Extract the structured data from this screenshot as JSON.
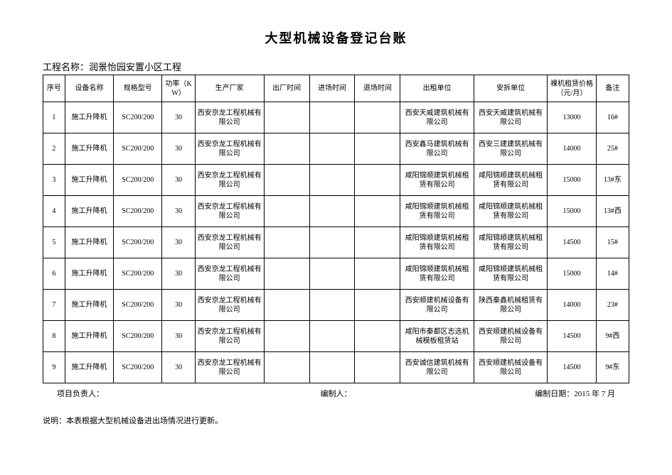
{
  "title": "大型机械设备登记台账",
  "project_label": "工程名称：",
  "project_name": "润景怡园安置小区工程",
  "table": {
    "columns": [
      "序号",
      "设备名称",
      "规格型号",
      "功率（KW）",
      "生产厂家",
      "出厂时间",
      "进场时间",
      "退场时间",
      "出租单位",
      "安拆单位",
      "裸机租赁价格（元/月）",
      "备注"
    ],
    "rows": [
      [
        "1",
        "施工升降机",
        "SC200/200",
        "30",
        "西安京龙工程机械有限公司",
        "",
        "",
        "",
        "西安天威建筑机械有限公司",
        "西安天威建筑机械有限公司",
        "13000",
        "16#"
      ],
      [
        "2",
        "施工升降机",
        "SC200/200",
        "30",
        "西安京龙工程机械有限公司",
        "",
        "",
        "",
        "西安鑫马建筑机械有限公司",
        "西安三建建筑机械有限公司",
        "14000",
        "25#"
      ],
      [
        "3",
        "施工升降机",
        "SC200/200",
        "30",
        "西安京龙工程机械有限公司",
        "",
        "",
        "",
        "咸阳锦顺建筑机械租赁有限公司",
        "咸阳锦顺建筑机械租赁有限公司",
        "15000",
        "13#东"
      ],
      [
        "4",
        "施工升降机",
        "SC200/200",
        "30",
        "西安京龙工程机械有限公司",
        "",
        "",
        "",
        "咸阳锦顺建筑机械租赁有限公司",
        "咸阳锦顺建筑机械租赁有限公司",
        "15000",
        "13#西"
      ],
      [
        "5",
        "施工升降机",
        "SC200/200",
        "30",
        "西安京龙工程机械有限公司",
        "",
        "",
        "",
        "咸阳锦顺建筑机械租赁有限公司",
        "咸阳锦顺建筑机械租赁有限公司",
        "14500",
        "15#"
      ],
      [
        "6",
        "施工升降机",
        "SC200/200",
        "30",
        "西安京龙工程机械有限公司",
        "",
        "",
        "",
        "咸阳锦顺建筑机械租赁有限公司",
        "咸阳锦顺建筑机械租赁有限公司",
        "15000",
        "14#"
      ],
      [
        "7",
        "施工升降机",
        "SC200/200",
        "30",
        "西安京龙工程机械有限公司",
        "",
        "",
        "",
        "西安顺建机械设备有限公司",
        "陕西秦鑫机械租赁有限公司",
        "14000",
        "23#"
      ],
      [
        "8",
        "施工升降机",
        "SC200/200",
        "30",
        "西安京龙工程机械有限公司",
        "",
        "",
        "",
        "咸阳市秦都区志选机械模板租赁站",
        "西安顺建机械设备有限公司",
        "14500",
        "9#西"
      ],
      [
        "9",
        "施工升降机",
        "SC200/200",
        "30",
        "西安京龙工程机械有限公司",
        "",
        "",
        "",
        "西安诚信建筑机械有限公司",
        "西安顺建机械设备有限公司",
        "14500",
        "9#东"
      ]
    ]
  },
  "footer": {
    "leader_label": "项目负责人：",
    "preparer_label": "编制人：",
    "date_label": "编制日期：",
    "date_value": "2015 年 7 月"
  },
  "note_label": "说明：",
  "note_text": "本表根据大型机械设备进出场情况进行更新。"
}
